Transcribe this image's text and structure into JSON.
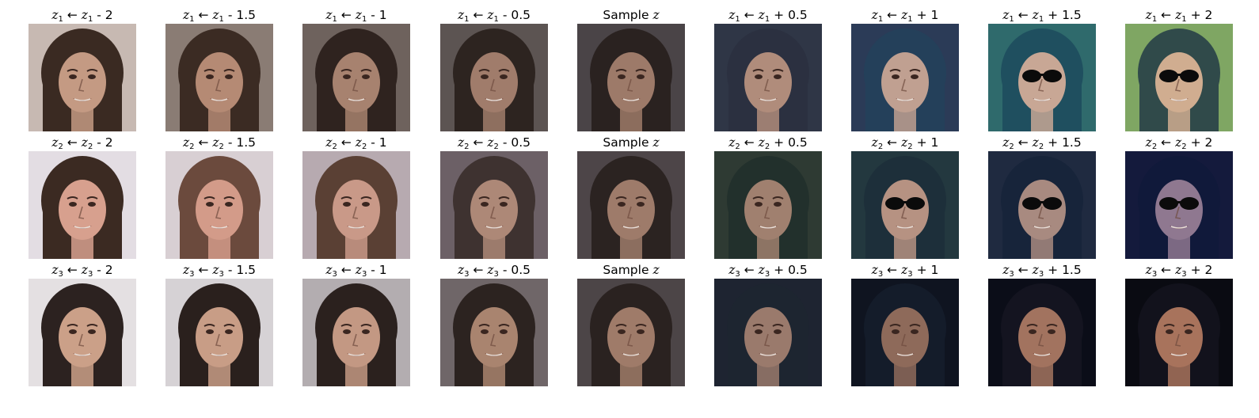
{
  "sample_label": "Sample",
  "sample_var": "z",
  "arrow": "←",
  "rows": [
    {
      "var": "z",
      "sub": "1",
      "captions": [
        "- 2",
        "- 1.5",
        "- 1",
        "- 0.5",
        null,
        "+ 0.5",
        "+ 1",
        "+ 1.5",
        "+ 2"
      ],
      "faces": [
        {
          "bg": "#c7b9b2",
          "hair": "#3a2a22",
          "skin": "#c49a83",
          "glasses": false
        },
        {
          "bg": "#8a7c74",
          "hair": "#3b2b23",
          "skin": "#b58a74",
          "glasses": false
        },
        {
          "bg": "#6e625d",
          "hair": "#2f231f",
          "skin": "#a7826f",
          "glasses": false
        },
        {
          "bg": "#5c5452",
          "hair": "#2d2420",
          "skin": "#a07c6b",
          "glasses": false
        },
        {
          "bg": "#4a4447",
          "hair": "#2a2220",
          "skin": "#9d7a69",
          "glasses": false
        },
        {
          "bg": "#2f3646",
          "hair": "#2b3040",
          "skin": "#b08c7b",
          "glasses": false
        },
        {
          "bg": "#2b3b57",
          "hair": "#24405a",
          "skin": "#c0a091",
          "glasses": false
        },
        {
          "bg": "#2f6a6c",
          "hair": "#1f4f5f",
          "skin": "#c8a795",
          "glasses": true
        },
        {
          "bg": "#7fa663",
          "hair": "#304a4a",
          "skin": "#d0ad90",
          "glasses": true
        }
      ]
    },
    {
      "var": "z",
      "sub": "2",
      "captions": [
        "- 2",
        "- 1.5",
        "- 1",
        "- 0.5",
        null,
        "+ 0.5",
        "+ 1",
        "+ 1.5",
        "+ 2"
      ],
      "faces": [
        {
          "bg": "#e3dde3",
          "hair": "#3b2a22",
          "skin": "#d7a08e",
          "glasses": false
        },
        {
          "bg": "#d8cfd3",
          "hair": "#6b4a3d",
          "skin": "#d39b89",
          "glasses": false
        },
        {
          "bg": "#b7aab0",
          "hair": "#5a4034",
          "skin": "#c99988",
          "glasses": false
        },
        {
          "bg": "#6c6066",
          "hair": "#3e3230",
          "skin": "#ad8877",
          "glasses": false
        },
        {
          "bg": "#4d4548",
          "hair": "#2b2321",
          "skin": "#9e7b6a",
          "glasses": false
        },
        {
          "bg": "#2e3a33",
          "hair": "#22302c",
          "skin": "#a0806f",
          "glasses": false
        },
        {
          "bg": "#23383f",
          "hair": "#1d2f3a",
          "skin": "#b69282",
          "glasses": true
        },
        {
          "bg": "#1f2a40",
          "hair": "#17243a",
          "skin": "#a88a80",
          "glasses": true
        },
        {
          "bg": "#141a3c",
          "hair": "#10193a",
          "skin": "#8f7890",
          "glasses": true
        }
      ]
    },
    {
      "var": "z",
      "sub": "3",
      "captions": [
        "- 2",
        "- 1.5",
        "- 1",
        "- 0.5",
        null,
        "+ 0.5",
        "+ 1",
        "+ 1.5",
        "+ 2"
      ],
      "faces": [
        {
          "bg": "#e4e0e2",
          "hair": "#2c2220",
          "skin": "#cba088",
          "glasses": false
        },
        {
          "bg": "#d6d2d5",
          "hair": "#2a201d",
          "skin": "#c89d86",
          "glasses": false
        },
        {
          "bg": "#b3adb0",
          "hair": "#2b211e",
          "skin": "#c39883",
          "glasses": false
        },
        {
          "bg": "#6f6668",
          "hair": "#2c2320",
          "skin": "#a9846f",
          "glasses": false
        },
        {
          "bg": "#4c4547",
          "hair": "#2a2220",
          "skin": "#9f7b69",
          "glasses": false
        },
        {
          "bg": "#1e2431",
          "hair": "#1d2530",
          "skin": "#9a7a6c",
          "glasses": false
        },
        {
          "bg": "#0f1420",
          "hair": "#141c2a",
          "skin": "#8e6a5a",
          "glasses": false
        },
        {
          "bg": "#0b0d18",
          "hair": "#141420",
          "skin": "#a2735f",
          "glasses": false
        },
        {
          "bg": "#0a0b12",
          "hair": "#12121c",
          "skin": "#a8735c",
          "glasses": false
        }
      ]
    }
  ]
}
